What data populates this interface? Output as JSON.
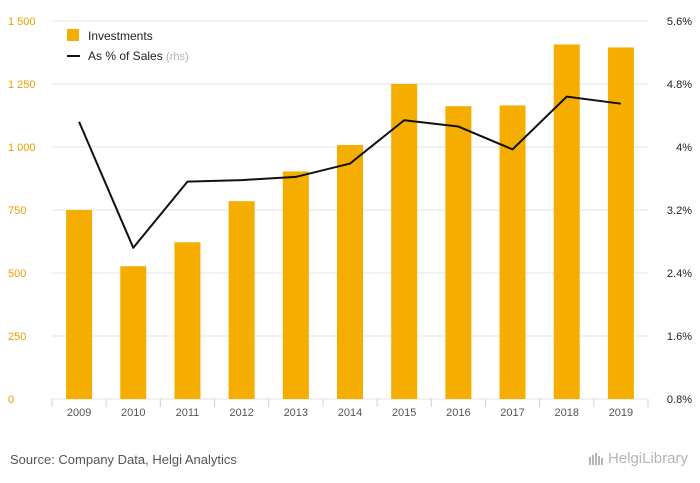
{
  "chart_data": {
    "type": "bar",
    "categories": [
      "2009",
      "2010",
      "2011",
      "2012",
      "2013",
      "2014",
      "2015",
      "2016",
      "2017",
      "2018",
      "2019"
    ],
    "series": [
      {
        "name": "Investments",
        "type": "bar",
        "axis": "left",
        "values": [
          750,
          527,
          622,
          785,
          903,
          1008,
          1250,
          1162,
          1165,
          1407,
          1395
        ]
      },
      {
        "name": "As % of Sales",
        "type": "line",
        "axis": "right",
        "values": [
          4.32,
          2.72,
          3.56,
          3.58,
          3.62,
          3.79,
          4.34,
          4.26,
          3.97,
          4.64,
          4.55
        ]
      }
    ],
    "legend": {
      "position": "top-left",
      "rhs_note": "(rhs)"
    },
    "y_left": {
      "ylim": [
        0,
        1500
      ],
      "ticks": [
        0,
        250,
        500,
        750,
        1000,
        1250,
        1500
      ],
      "tick_labels": [
        "0",
        "250",
        "500",
        "750",
        "1 000",
        "1 250",
        "1 500"
      ]
    },
    "y_right": {
      "ylim": [
        0.8,
        5.6
      ],
      "ticks": [
        0.8,
        1.6,
        2.4,
        3.2,
        4.0,
        4.8,
        5.6
      ],
      "tick_labels": [
        "0.8%",
        "1.6%",
        "2.4%",
        "3.2%",
        "4%",
        "4.8%",
        "5.6%"
      ]
    },
    "grid": true,
    "colors": {
      "bar": "#f5ae00",
      "line": "#111111",
      "left_axis": "#e8a000",
      "grid": "#e3e3e3"
    }
  },
  "footer": {
    "source": "Source: Company Data, Helgi Analytics",
    "brand": "HelgiLibrary"
  }
}
